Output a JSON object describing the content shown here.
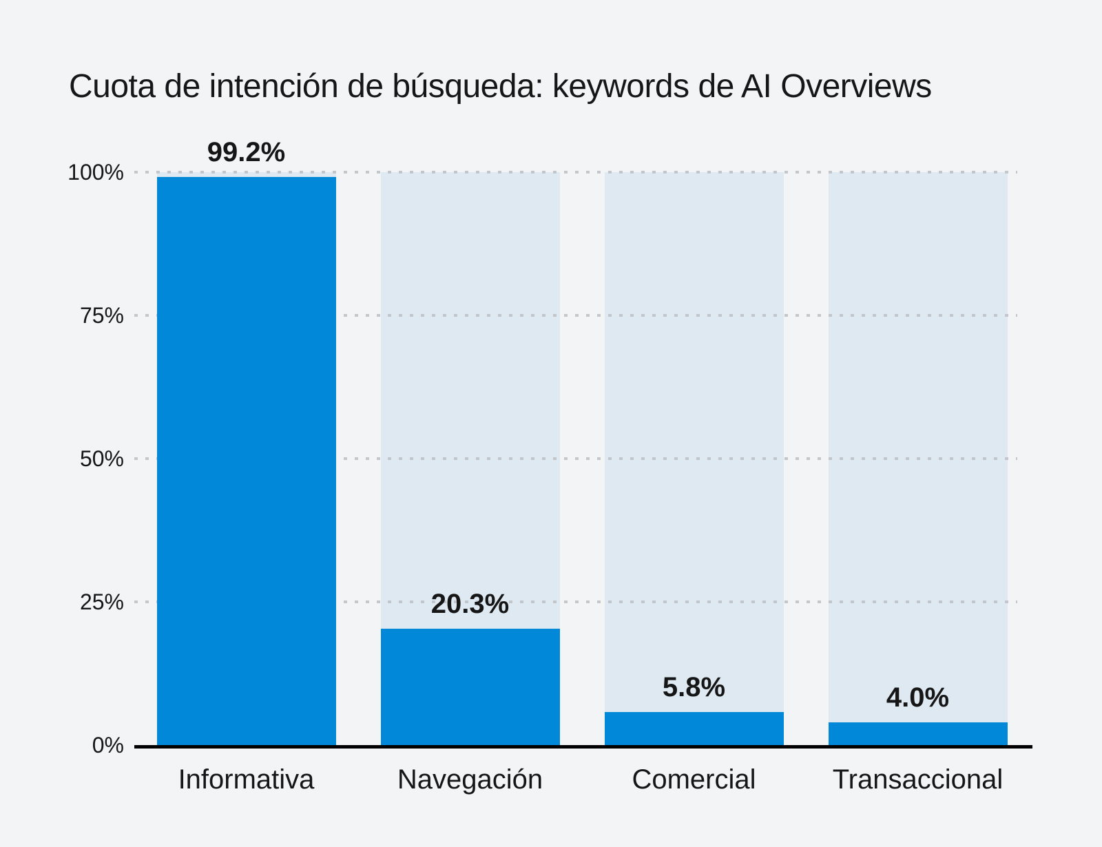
{
  "page": {
    "background_color": "#f2f4f6",
    "text_color": "#161616"
  },
  "chart": {
    "title": "Cuota de intención de búsqueda: keywords de AI Overviews"
  },
  "chart_data": {
    "type": "bar",
    "title": "Cuota de intención de búsqueda: keywords de AI Overviews",
    "categories": [
      "Informativa",
      "Navegación",
      "Comercial",
      "Transaccional"
    ],
    "values": [
      99.2,
      20.3,
      5.8,
      4.0
    ],
    "value_labels": [
      "99.2%",
      "20.3%",
      "5.8%",
      "4.0%"
    ],
    "xlabel": "",
    "ylabel": "",
    "ylim": [
      0,
      100
    ],
    "y_tick_values": [
      100,
      75,
      50,
      25,
      0
    ],
    "y_tick_labels": [
      "100%",
      "75%",
      "50%",
      "25%",
      "0%"
    ],
    "grid": "dotted-horizontal-on",
    "legend": "none",
    "bar_color": "#0288d9",
    "track_color": "#dee9f1",
    "gridline_color": "#c3c7cc",
    "axis_color": "#000000"
  }
}
